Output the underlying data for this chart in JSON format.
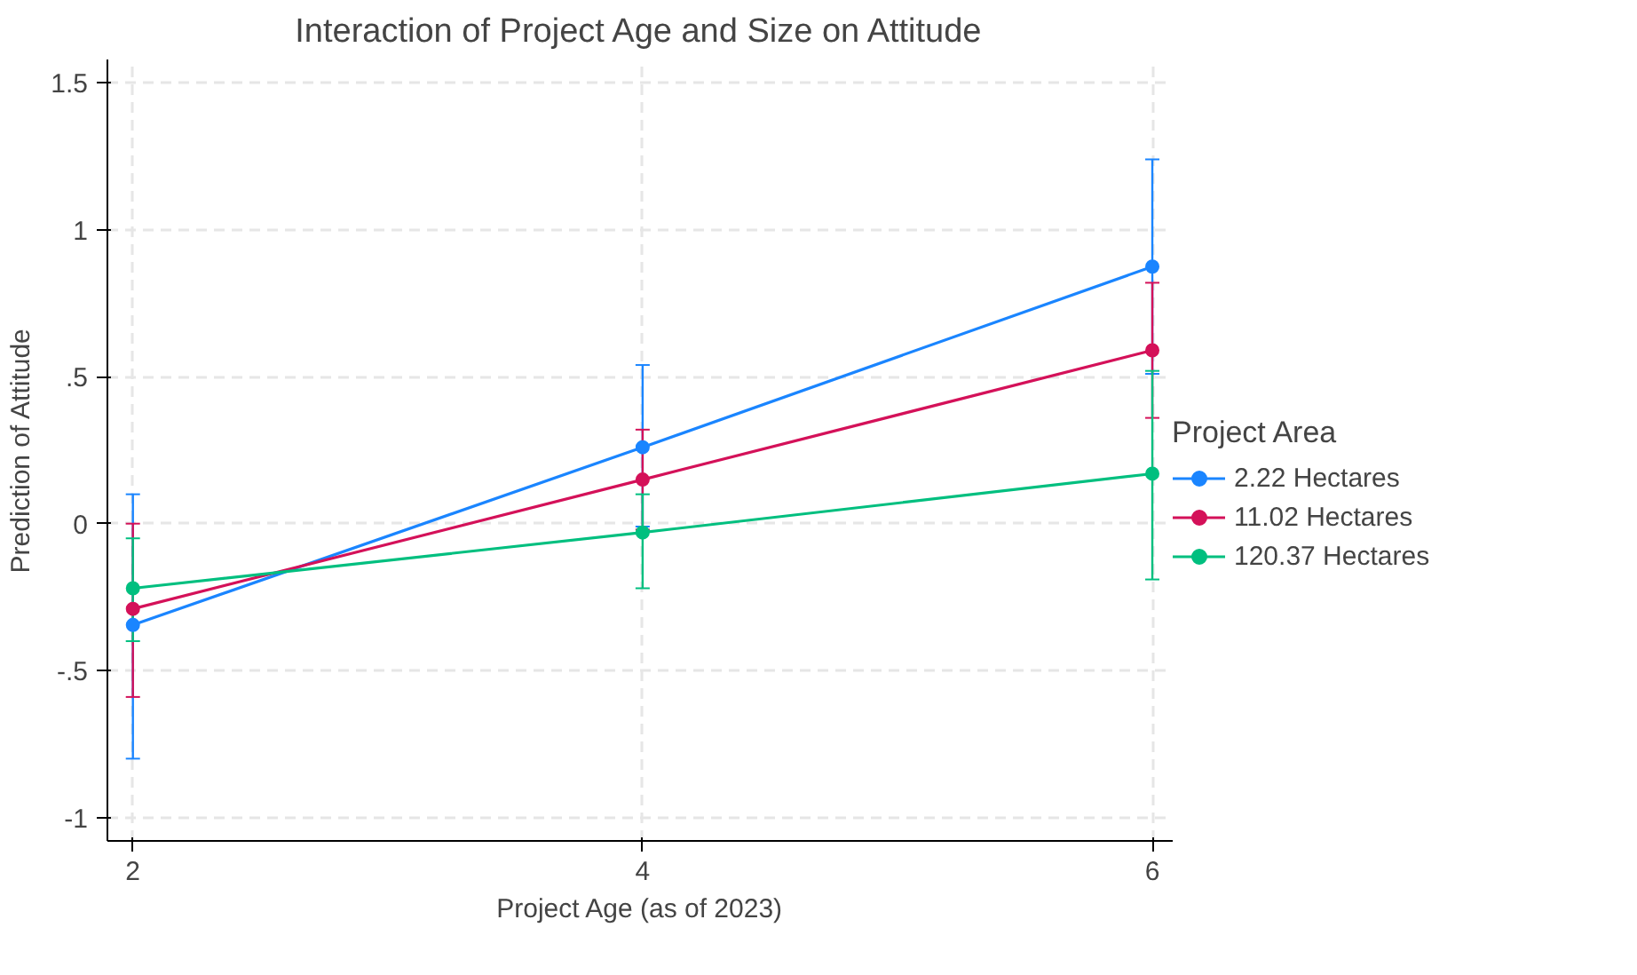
{
  "chart_data": {
    "type": "line",
    "title": "Interaction of Project Age and Size on Attitude",
    "xlabel": "Project Age (as of 2023)",
    "ylabel": "Prediction of Attitude",
    "legend_title": "Project Area",
    "x": [
      2,
      4,
      6
    ],
    "series": [
      {
        "name": "2.22 Hectares",
        "color": "#1a85ff",
        "values": [
          -0.345,
          0.26,
          0.875
        ],
        "errors": [
          [
            -0.8,
            0.1
          ],
          [
            -0.01,
            0.54
          ],
          [
            0.51,
            1.24
          ]
        ]
      },
      {
        "name": "11.02 Hectares",
        "color": "#d41159",
        "values": [
          -0.29,
          0.15,
          0.59
        ],
        "errors": [
          [
            -0.59,
            0.0
          ],
          [
            -0.02,
            0.32
          ],
          [
            0.36,
            0.82
          ]
        ]
      },
      {
        "name": "120.37 Hectares",
        "color": "#00bf7f",
        "values": [
          -0.22,
          -0.03,
          0.17
        ],
        "errors": [
          [
            -0.4,
            -0.05
          ],
          [
            -0.22,
            0.1
          ],
          [
            -0.19,
            0.52
          ]
        ]
      }
    ],
    "xlim": [
      1.9,
      6.08
    ],
    "ylim": [
      -1.08,
      1.58
    ],
    "xticks": [
      2,
      4,
      6
    ],
    "yticks": [
      {
        "value": -1,
        "label": "-1"
      },
      {
        "value": -0.5,
        "label": "-.5"
      },
      {
        "value": 0,
        "label": "0"
      },
      {
        "value": 0.5,
        "label": ".5"
      },
      {
        "value": 1,
        "label": "1"
      },
      {
        "value": 1.5,
        "label": "1.5"
      }
    ],
    "grid": true,
    "legend": "right",
    "marker": "circle",
    "line_style": "solid"
  }
}
